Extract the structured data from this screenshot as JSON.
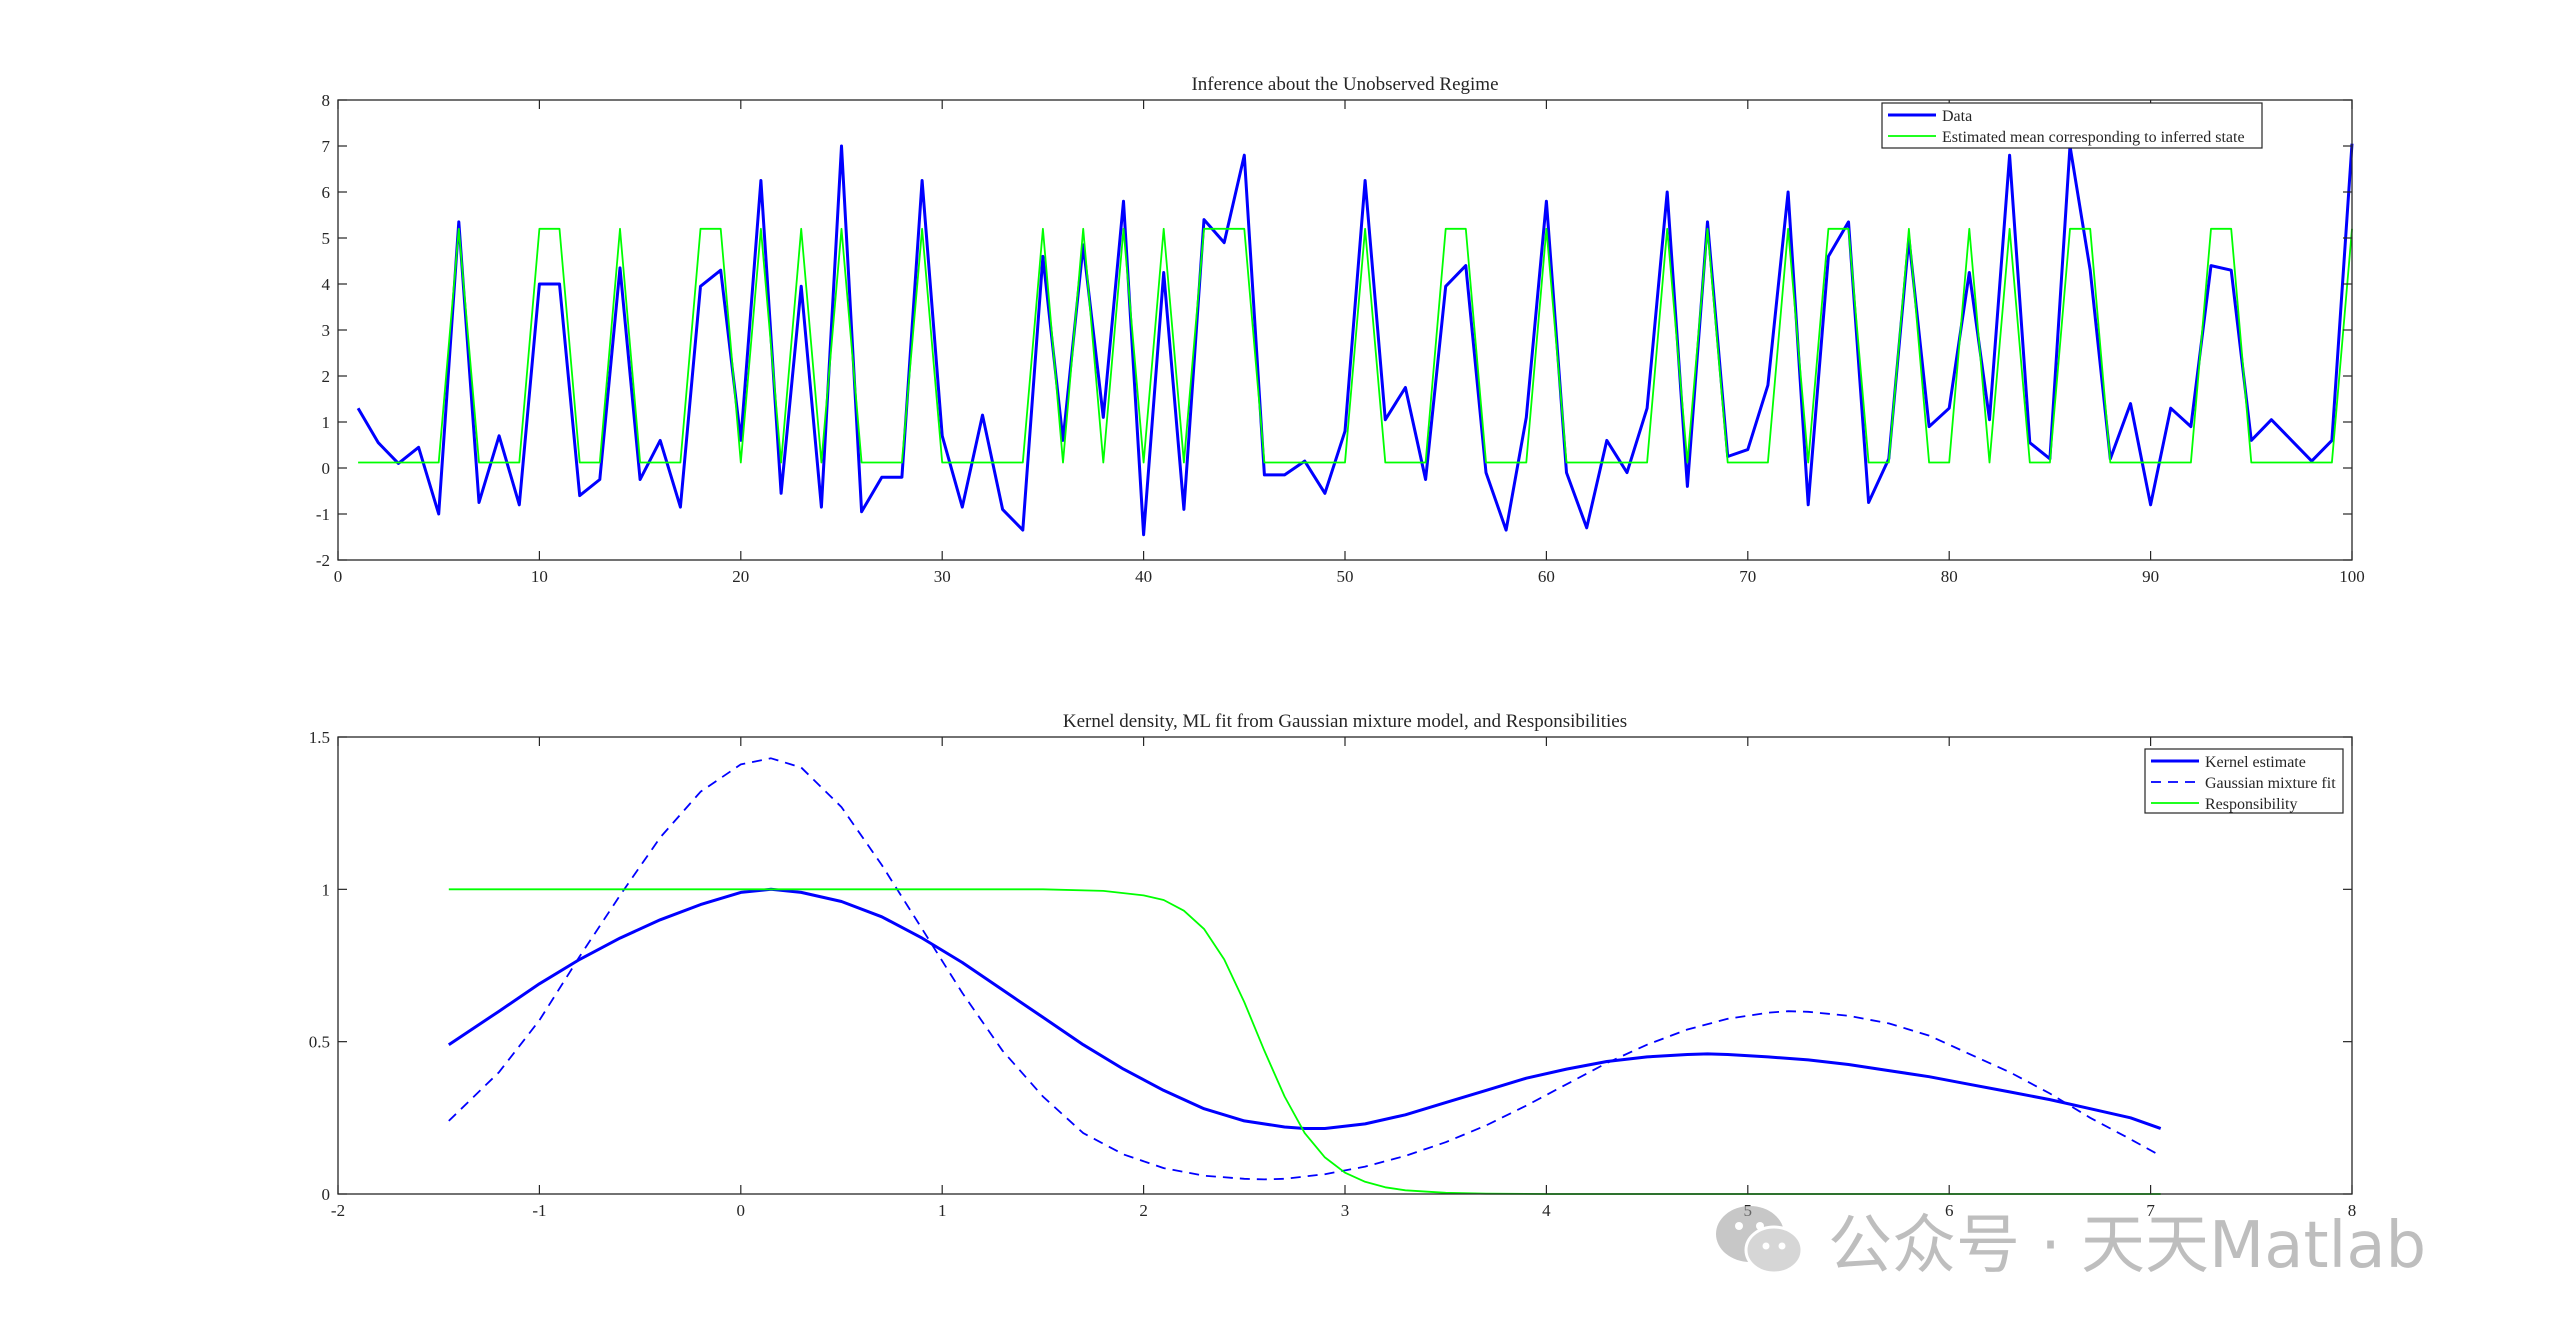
{
  "chart_data": [
    {
      "type": "line",
      "title": "Inference about the Unobserved Regime",
      "xlabel": "",
      "ylabel": "",
      "xlim": [
        0,
        100
      ],
      "ylim": [
        -2,
        8
      ],
      "xticks": [
        "0",
        "10",
        "20",
        "30",
        "40",
        "50",
        "60",
        "70",
        "80",
        "90",
        "100"
      ],
      "yticks": [
        "-2",
        "-1",
        "0",
        "1",
        "2",
        "3",
        "4",
        "5",
        "6",
        "7",
        "8"
      ],
      "legend": {
        "position": "top-right",
        "entries": [
          "Data",
          "Estimated mean corresponding to inferred state"
        ]
      },
      "grid": false,
      "series": [
        {
          "name": "Data",
          "color": "#0000ff",
          "style": "solid",
          "x": [
            1,
            2,
            3,
            4,
            5,
            6,
            7,
            8,
            9,
            10,
            11,
            12,
            13,
            14,
            15,
            16,
            17,
            18,
            19,
            20,
            21,
            22,
            23,
            24,
            25,
            26,
            27,
            28,
            29,
            30,
            31,
            32,
            33,
            34,
            35,
            36,
            37,
            38,
            39,
            40,
            41,
            42,
            43,
            44,
            45,
            46,
            47,
            48,
            49,
            50,
            51,
            52,
            53,
            54,
            55,
            56,
            57,
            58,
            59,
            60,
            61,
            62,
            63,
            64,
            65,
            66,
            67,
            68,
            69,
            70,
            71,
            72,
            73,
            74,
            75,
            76,
            77,
            78,
            79,
            80,
            81,
            82,
            83,
            84,
            85,
            86,
            87,
            88,
            89,
            90,
            91,
            92,
            93,
            94,
            95,
            96,
            97,
            98,
            99,
            100
          ],
          "values": [
            1.3,
            0.55,
            0.1,
            0.45,
            -1.0,
            5.35,
            -0.75,
            0.7,
            -0.8,
            4.0,
            4.0,
            -0.6,
            -0.25,
            4.35,
            -0.25,
            0.6,
            -0.85,
            3.95,
            4.3,
            0.6,
            6.25,
            -0.55,
            3.95,
            -0.85,
            7.0,
            -0.95,
            -0.2,
            -0.2,
            6.25,
            0.7,
            -0.85,
            1.15,
            -0.9,
            -1.35,
            4.6,
            0.6,
            4.85,
            1.1,
            5.8,
            -1.45,
            4.25,
            -0.9,
            5.4,
            4.9,
            6.8,
            -0.15,
            -0.15,
            0.15,
            -0.55,
            0.8,
            6.25,
            1.05,
            1.75,
            -0.25,
            3.95,
            4.4,
            -0.1,
            -1.35,
            1.1,
            5.8,
            -0.1,
            -1.3,
            0.6,
            -0.1,
            1.3,
            6.0,
            -0.4,
            5.35,
            0.25,
            0.4,
            1.8,
            6.0,
            -0.8,
            4.6,
            5.35,
            -0.75,
            0.2,
            5.0,
            0.9,
            1.3,
            4.25,
            1.05,
            6.8,
            0.55,
            0.2,
            7.0,
            4.3,
            0.2,
            1.4,
            -0.8,
            1.3,
            0.9,
            4.4,
            4.3,
            0.6,
            1.05,
            0.6,
            0.15,
            0.6,
            7.05
          ]
        },
        {
          "name": "Estimated mean corresponding to inferred state",
          "color": "#00ff00",
          "style": "solid",
          "x": [
            1,
            2,
            3,
            4,
            5,
            6,
            7,
            8,
            9,
            10,
            11,
            12,
            13,
            14,
            15,
            16,
            17,
            18,
            19,
            20,
            21,
            22,
            23,
            24,
            25,
            26,
            27,
            28,
            29,
            30,
            31,
            32,
            33,
            34,
            35,
            36,
            37,
            38,
            39,
            40,
            41,
            42,
            43,
            44,
            45,
            46,
            47,
            48,
            49,
            50,
            51,
            52,
            53,
            54,
            55,
            56,
            57,
            58,
            59,
            60,
            61,
            62,
            63,
            64,
            65,
            66,
            67,
            68,
            69,
            70,
            71,
            72,
            73,
            74,
            75,
            76,
            77,
            78,
            79,
            80,
            81,
            82,
            83,
            84,
            85,
            86,
            87,
            88,
            89,
            90,
            91,
            92,
            93,
            94,
            95,
            96,
            97,
            98,
            99,
            100
          ],
          "values": [
            0.12,
            0.12,
            0.12,
            0.12,
            0.12,
            5.2,
            0.12,
            0.12,
            0.12,
            5.2,
            5.2,
            0.12,
            0.12,
            5.2,
            0.12,
            0.12,
            0.12,
            5.2,
            5.2,
            0.12,
            5.2,
            0.12,
            5.2,
            0.12,
            5.2,
            0.12,
            0.12,
            0.12,
            5.2,
            0.12,
            0.12,
            0.12,
            0.12,
            0.12,
            5.2,
            0.12,
            5.2,
            0.12,
            5.2,
            0.12,
            5.2,
            0.12,
            5.2,
            5.2,
            5.2,
            0.12,
            0.12,
            0.12,
            0.12,
            0.12,
            5.2,
            0.12,
            0.12,
            0.12,
            5.2,
            5.2,
            0.12,
            0.12,
            0.12,
            5.2,
            0.12,
            0.12,
            0.12,
            0.12,
            0.12,
            5.2,
            0.12,
            5.2,
            0.12,
            0.12,
            0.12,
            5.2,
            0.12,
            5.2,
            5.2,
            0.12,
            0.12,
            5.2,
            0.12,
            0.12,
            5.2,
            0.12,
            5.2,
            0.12,
            0.12,
            5.2,
            5.2,
            0.12,
            0.12,
            0.12,
            0.12,
            0.12,
            5.2,
            5.2,
            0.12,
            0.12,
            0.12,
            0.12,
            0.12,
            5.2
          ]
        }
      ]
    },
    {
      "type": "line",
      "title": "Kernel density, ML fit from Gaussian mixture model, and Responsibilities",
      "xlabel": "",
      "ylabel": "",
      "xlim": [
        -2,
        8
      ],
      "ylim": [
        0,
        1.5
      ],
      "xticks": [
        "-2",
        "-1",
        "0",
        "1",
        "2",
        "3",
        "4",
        "5",
        "6",
        "7",
        "8"
      ],
      "yticks": [
        "0",
        "0.5",
        "1",
        "1.5"
      ],
      "legend": {
        "position": "top-right",
        "entries": [
          "Kernel estimate",
          "Gaussian mixture fit",
          "Responsibility"
        ]
      },
      "grid": false,
      "series": [
        {
          "name": "Kernel estimate",
          "color": "#0000ff",
          "style": "solid",
          "x": [
            -1.45,
            -1.2,
            -1.0,
            -0.8,
            -0.6,
            -0.4,
            -0.2,
            0.0,
            0.15,
            0.3,
            0.5,
            0.7,
            0.9,
            1.1,
            1.3,
            1.5,
            1.7,
            1.9,
            2.1,
            2.3,
            2.5,
            2.7,
            2.8,
            2.9,
            3.1,
            3.3,
            3.5,
            3.7,
            3.9,
            4.1,
            4.3,
            4.5,
            4.7,
            4.8,
            4.9,
            5.1,
            5.3,
            5.5,
            5.7,
            5.9,
            6.1,
            6.3,
            6.5,
            6.7,
            6.9,
            7.05
          ],
          "values": [
            0.49,
            0.6,
            0.69,
            0.77,
            0.84,
            0.9,
            0.95,
            0.99,
            1.0,
            0.99,
            0.96,
            0.91,
            0.84,
            0.76,
            0.67,
            0.58,
            0.49,
            0.41,
            0.34,
            0.28,
            0.24,
            0.22,
            0.215,
            0.215,
            0.23,
            0.26,
            0.3,
            0.34,
            0.38,
            0.41,
            0.435,
            0.45,
            0.458,
            0.46,
            0.458,
            0.45,
            0.44,
            0.425,
            0.405,
            0.385,
            0.36,
            0.335,
            0.31,
            0.28,
            0.25,
            0.215
          ]
        },
        {
          "name": "Gaussian mixture fit",
          "color": "#0000ff",
          "style": "dashed",
          "x": [
            -1.45,
            -1.2,
            -1.0,
            -0.8,
            -0.6,
            -0.4,
            -0.2,
            0.0,
            0.15,
            0.3,
            0.5,
            0.7,
            0.9,
            1.1,
            1.3,
            1.5,
            1.7,
            1.9,
            2.1,
            2.3,
            2.5,
            2.6,
            2.7,
            2.9,
            3.1,
            3.3,
            3.5,
            3.7,
            3.9,
            4.1,
            4.3,
            4.5,
            4.7,
            4.9,
            5.1,
            5.2,
            5.3,
            5.5,
            5.7,
            5.9,
            6.1,
            6.3,
            6.5,
            6.7,
            6.9,
            7.05
          ],
          "values": [
            0.24,
            0.4,
            0.57,
            0.78,
            0.98,
            1.17,
            1.32,
            1.41,
            1.43,
            1.4,
            1.27,
            1.08,
            0.87,
            0.66,
            0.47,
            0.32,
            0.2,
            0.13,
            0.085,
            0.06,
            0.05,
            0.048,
            0.05,
            0.065,
            0.09,
            0.125,
            0.17,
            0.225,
            0.29,
            0.36,
            0.43,
            0.49,
            0.54,
            0.575,
            0.595,
            0.6,
            0.598,
            0.585,
            0.56,
            0.52,
            0.46,
            0.4,
            0.33,
            0.25,
            0.18,
            0.125
          ]
        },
        {
          "name": "Responsibility",
          "color": "#00ff00",
          "style": "solid",
          "x": [
            -1.45,
            -1.0,
            -0.5,
            0.0,
            0.5,
            1.0,
            1.5,
            1.8,
            2.0,
            2.1,
            2.2,
            2.3,
            2.4,
            2.5,
            2.6,
            2.7,
            2.8,
            2.9,
            3.0,
            3.1,
            3.2,
            3.3,
            3.5,
            3.7,
            4.0,
            4.5,
            5.0,
            6.0,
            7.05
          ],
          "values": [
            1.0,
            1.0,
            1.0,
            1.0,
            1.0,
            1.0,
            1.0,
            0.995,
            0.98,
            0.965,
            0.93,
            0.87,
            0.77,
            0.63,
            0.47,
            0.32,
            0.2,
            0.12,
            0.07,
            0.04,
            0.022,
            0.012,
            0.004,
            0.001,
            0.0,
            0.0,
            0.0,
            0.0,
            0.0
          ]
        }
      ]
    }
  ],
  "watermark": {
    "text": "公众号 · 天天Matlab",
    "icon": "wechat-icon"
  }
}
